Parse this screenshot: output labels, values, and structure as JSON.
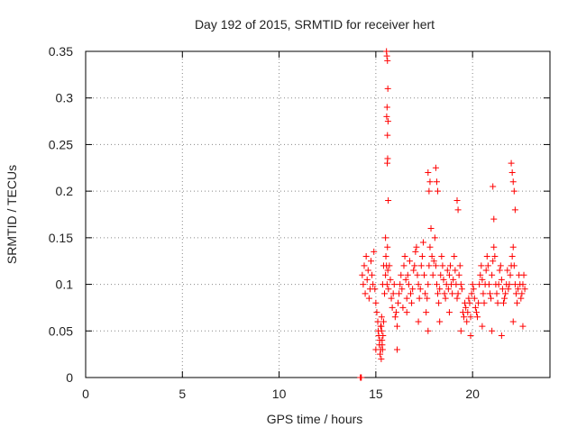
{
  "chart_data": {
    "type": "scatter",
    "title": "Day 192 of 2015, SRMTID for receiver hert",
    "xlabel": "GPS time / hours",
    "ylabel": "SRMTID / TECUs",
    "xlim": [
      0,
      24
    ],
    "ylim": [
      0,
      0.35
    ],
    "x_ticks": [
      0,
      5,
      10,
      15,
      20
    ],
    "x_tick_labels": [
      "0",
      "5",
      "10",
      "15",
      "20"
    ],
    "y_ticks": [
      0,
      0.05,
      0.1,
      0.15,
      0.2,
      0.25,
      0.3,
      0.35
    ],
    "y_tick_labels": [
      "0",
      "0.05",
      "0.1",
      "0.15",
      "0.2",
      "0.25",
      "0.3",
      "0.35"
    ],
    "grid": true,
    "legend": "none",
    "marker": "plus",
    "color": "#ff0000",
    "series": [
      {
        "x": [
          14.2,
          14.22,
          14.25,
          14.3,
          14.35,
          14.4,
          14.45,
          14.5,
          14.55,
          14.6,
          14.65,
          14.7,
          14.75,
          14.8,
          14.85,
          14.9,
          14.95,
          15.0,
          15.05,
          15.1,
          15.12,
          15.15,
          15.18,
          15.2,
          15.22,
          15.25,
          15.28,
          15.3,
          15.35,
          15.4,
          15.45,
          15.5,
          15.52,
          15.55,
          15.58,
          15.6,
          15.62,
          15.65,
          15.7,
          15.75,
          15.8,
          15.85,
          15.9,
          15.95,
          16.0,
          16.05,
          16.1,
          16.15,
          16.2,
          16.25,
          16.3,
          16.35,
          16.4,
          16.45,
          16.5,
          16.55,
          16.6,
          16.65,
          16.7,
          16.75,
          16.8,
          16.85,
          16.9,
          16.95,
          17.0,
          17.05,
          17.1,
          17.15,
          17.2,
          17.25,
          17.3,
          17.35,
          17.4,
          17.45,
          17.5,
          17.55,
          17.6,
          17.65,
          17.7,
          17.75,
          17.8,
          17.85,
          17.9,
          17.95,
          18.0,
          18.05,
          18.1,
          18.15,
          18.2,
          18.25,
          18.3,
          18.35,
          18.4,
          18.45,
          18.5,
          18.55,
          18.6,
          18.65,
          18.7,
          18.75,
          18.8,
          18.85,
          18.9,
          18.95,
          19.0,
          19.05,
          19.1,
          19.15,
          19.2,
          19.25,
          19.3,
          19.35,
          19.4,
          19.45,
          19.5,
          19.55,
          19.6,
          19.65,
          19.7,
          19.75,
          19.8,
          19.85,
          19.9,
          19.95,
          20.0,
          20.05,
          20.1,
          20.15,
          20.2,
          20.25,
          20.3,
          20.35,
          20.4,
          20.45,
          20.5,
          20.55,
          20.6,
          20.65,
          20.7,
          20.75,
          20.8,
          20.85,
          20.9,
          20.95,
          21.0,
          21.05,
          21.1,
          21.15,
          21.2,
          21.25,
          21.3,
          21.35,
          21.4,
          21.45,
          21.5,
          21.55,
          21.6,
          21.65,
          21.7,
          21.75,
          21.8,
          21.85,
          21.9,
          21.95,
          22.0,
          22.05,
          22.1,
          22.15,
          22.2,
          22.25,
          22.3,
          22.35,
          22.4,
          22.45,
          22.5,
          22.55,
          22.6,
          22.65,
          22.7,
          15.55,
          15.57,
          15.6,
          15.62,
          15.58,
          15.63,
          15.56,
          15.6,
          15.61,
          15.59,
          15.64,
          17.7,
          17.8,
          17.75,
          18.1,
          18.2,
          18.15,
          19.2,
          19.25,
          21.05,
          21.1,
          22.0,
          22.05,
          22.1,
          22.15,
          22.2,
          15.3,
          15.32,
          15.35,
          15.28,
          15.33,
          15.37,
          15.25,
          15.4,
          15.0,
          15.5,
          16.1,
          16.6,
          17.2,
          17.7,
          18.3,
          18.8,
          19.4,
          19.9,
          20.5,
          21.0,
          21.5,
          22.1,
          22.6
        ],
        "y": [
          0.0,
          0.0,
          0.0,
          0.11,
          0.1,
          0.12,
          0.09,
          0.13,
          0.105,
          0.115,
          0.085,
          0.095,
          0.125,
          0.11,
          0.1,
          0.135,
          0.095,
          0.08,
          0.07,
          0.06,
          0.05,
          0.045,
          0.035,
          0.04,
          0.025,
          0.03,
          0.055,
          0.065,
          0.1,
          0.12,
          0.09,
          0.11,
          0.13,
          0.12,
          0.1,
          0.14,
          0.115,
          0.095,
          0.12,
          0.105,
          0.085,
          0.075,
          0.09,
          0.1,
          0.065,
          0.07,
          0.055,
          0.08,
          0.09,
          0.1,
          0.11,
          0.095,
          0.075,
          0.12,
          0.13,
          0.105,
          0.085,
          0.11,
          0.1,
          0.125,
          0.09,
          0.08,
          0.095,
          0.115,
          0.12,
          0.135,
          0.14,
          0.11,
          0.1,
          0.085,
          0.095,
          0.12,
          0.13,
          0.145,
          0.11,
          0.09,
          0.07,
          0.085,
          0.1,
          0.12,
          0.14,
          0.16,
          0.13,
          0.11,
          0.125,
          0.15,
          0.12,
          0.1,
          0.09,
          0.08,
          0.095,
          0.11,
          0.13,
          0.12,
          0.105,
          0.09,
          0.085,
          0.1,
          0.115,
          0.095,
          0.11,
          0.12,
          0.1,
          0.09,
          0.105,
          0.13,
          0.115,
          0.1,
          0.085,
          0.09,
          0.11,
          0.12,
          0.1,
          0.095,
          0.07,
          0.065,
          0.08,
          0.075,
          0.06,
          0.07,
          0.085,
          0.08,
          0.065,
          0.09,
          0.1,
          0.095,
          0.085,
          0.075,
          0.07,
          0.065,
          0.08,
          0.1,
          0.11,
          0.12,
          0.105,
          0.09,
          0.08,
          0.1,
          0.115,
          0.13,
          0.12,
          0.1,
          0.09,
          0.085,
          0.11,
          0.125,
          0.14,
          0.13,
          0.1,
          0.09,
          0.08,
          0.1,
          0.115,
          0.12,
          0.105,
          0.095,
          0.08,
          0.085,
          0.09,
          0.1,
          0.115,
          0.095,
          0.1,
          0.11,
          0.12,
          0.13,
          0.14,
          0.12,
          0.1,
          0.09,
          0.08,
          0.095,
          0.11,
          0.1,
          0.085,
          0.09,
          0.1,
          0.11,
          0.095,
          0.35,
          0.345,
          0.34,
          0.31,
          0.29,
          0.275,
          0.28,
          0.26,
          0.235,
          0.23,
          0.19,
          0.22,
          0.21,
          0.2,
          0.225,
          0.2,
          0.21,
          0.19,
          0.18,
          0.205,
          0.17,
          0.23,
          0.22,
          0.21,
          0.2,
          0.18,
          0.05,
          0.04,
          0.03,
          0.02,
          0.035,
          0.045,
          0.055,
          0.06,
          0.03,
          0.15,
          0.03,
          0.07,
          0.06,
          0.05,
          0.06,
          0.07,
          0.05,
          0.045,
          0.055,
          0.05,
          0.045,
          0.06,
          0.055
        ]
      }
    ]
  }
}
